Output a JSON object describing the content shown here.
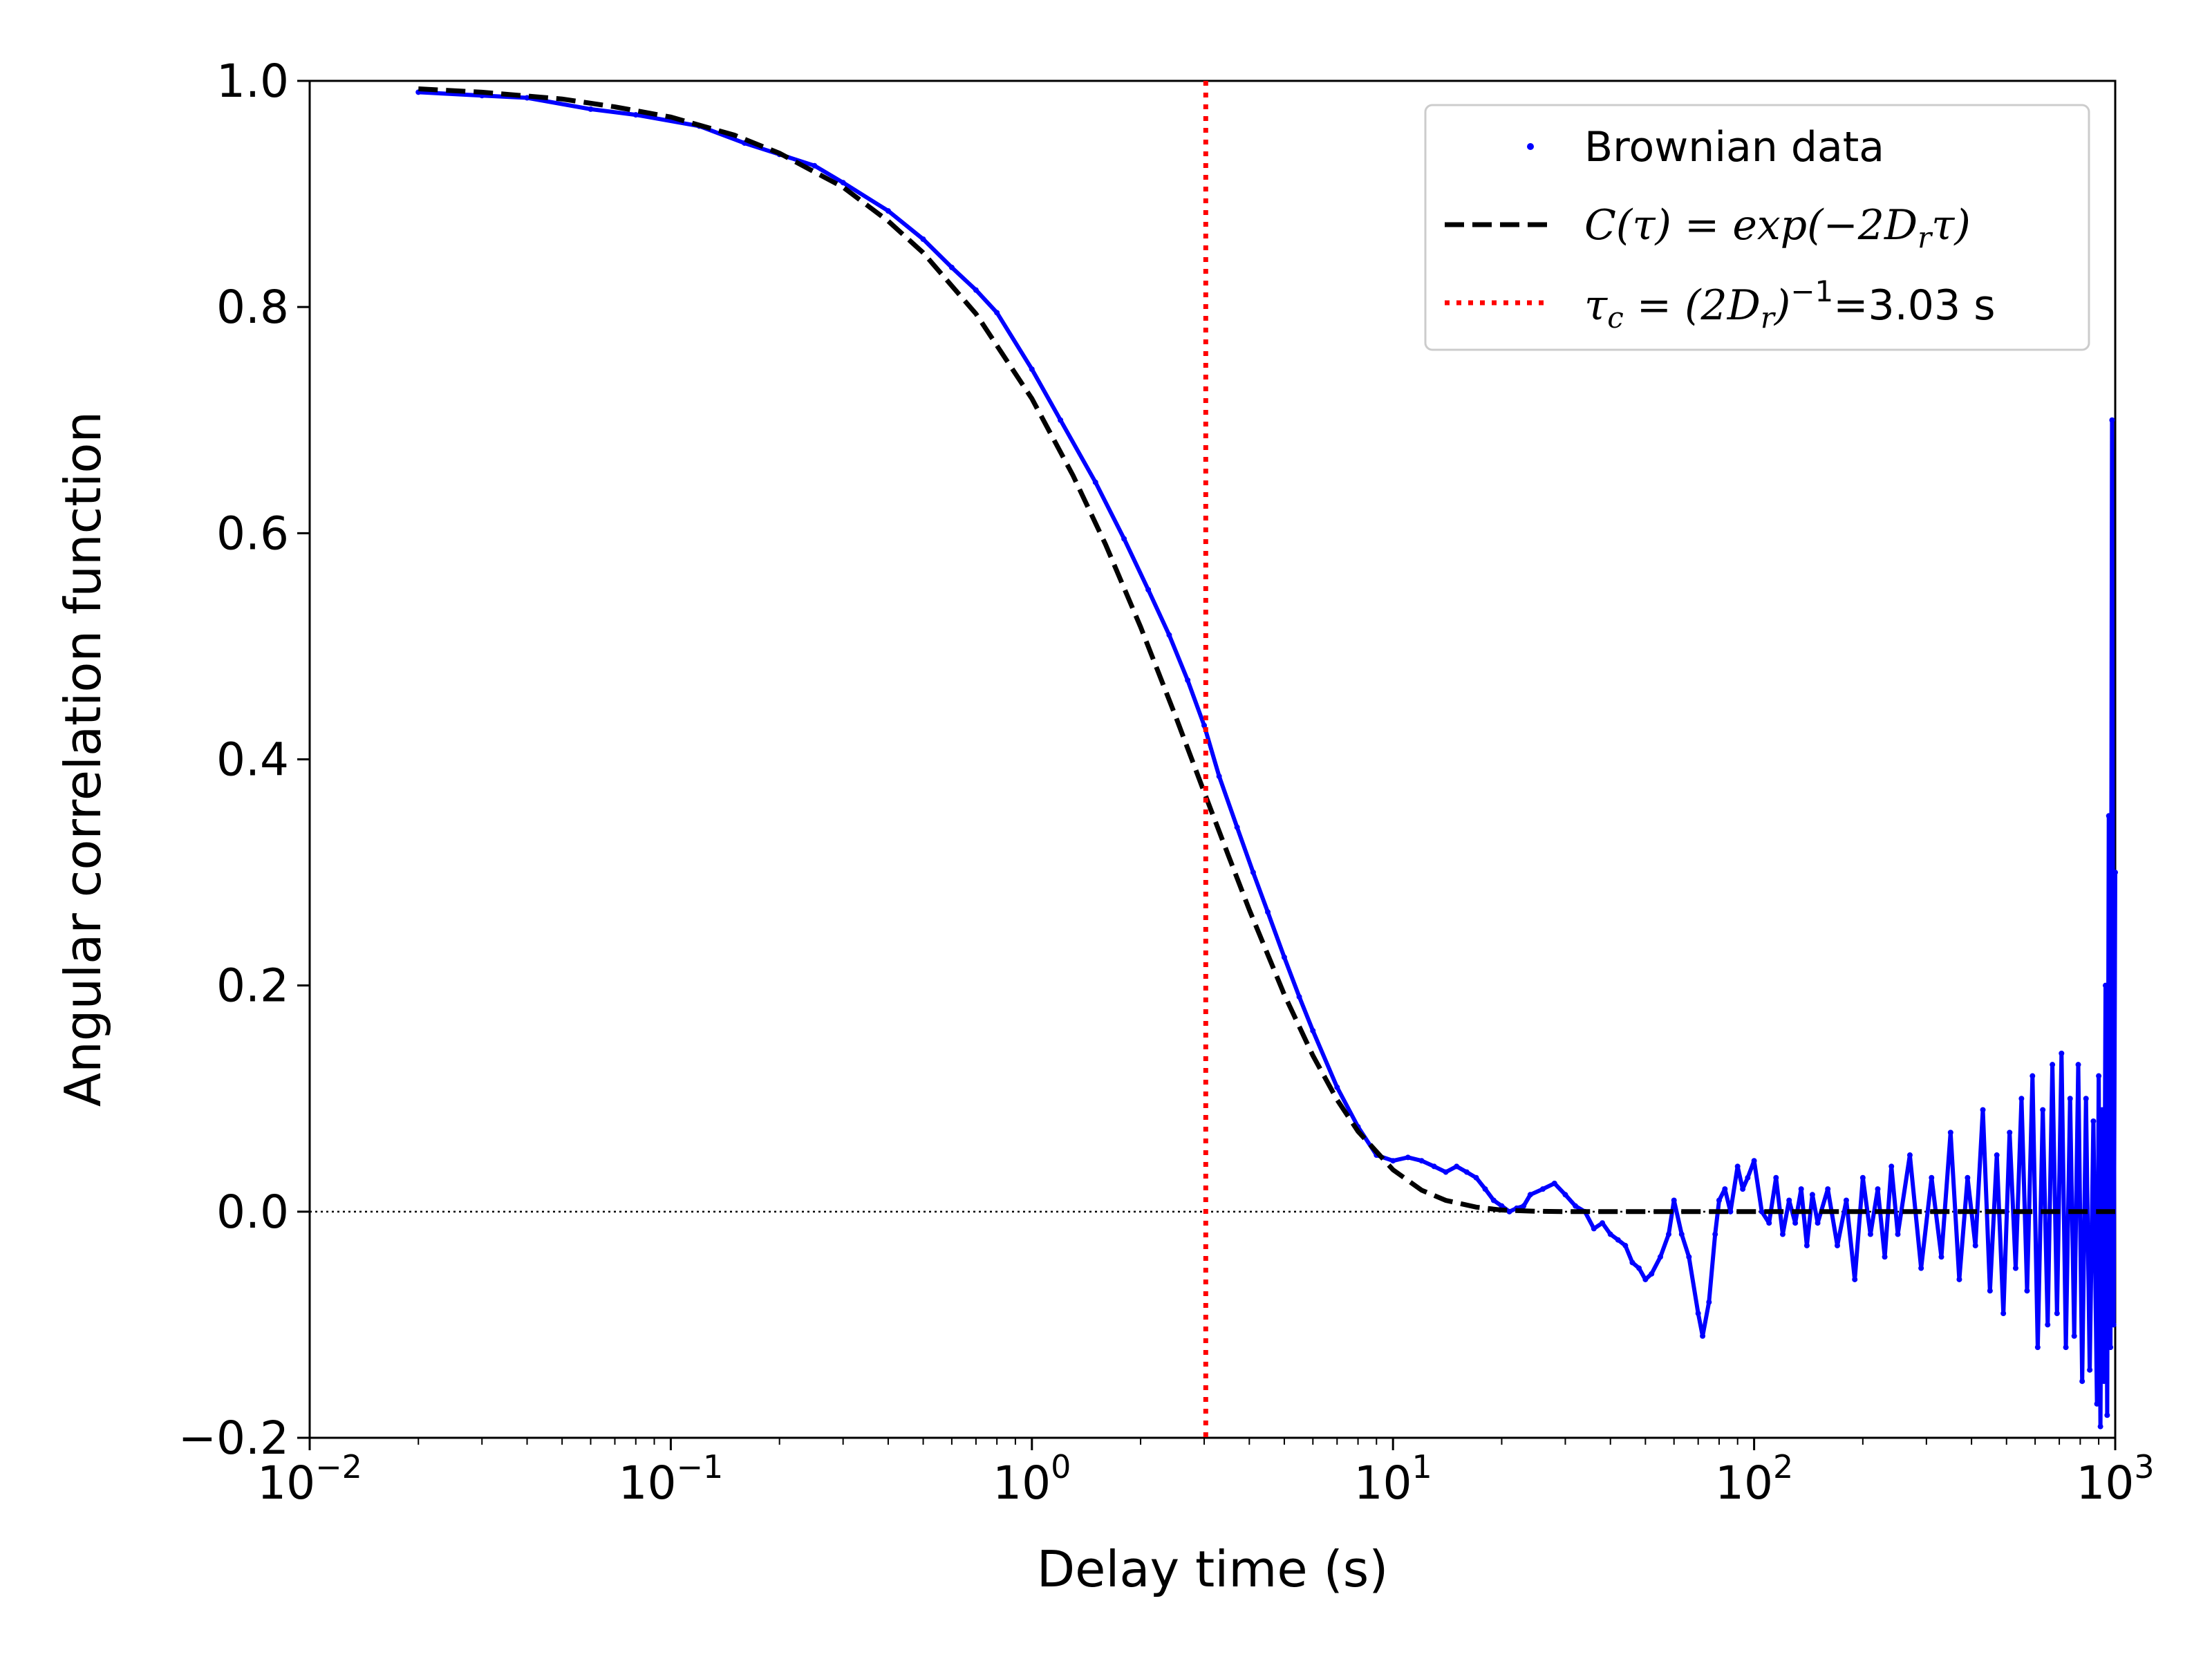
{
  "chart_data": {
    "type": "line",
    "title": "",
    "xlabel": "Delay time (s)",
    "ylabel": "Angular correlation function",
    "x_scale": "log",
    "xlim": [
      0.01,
      1000
    ],
    "ylim": [
      -0.2,
      1.0
    ],
    "x_ticks": [
      {
        "value": 0.01,
        "base": "10",
        "exp": "−2"
      },
      {
        "value": 0.1,
        "base": "10",
        "exp": "−1"
      },
      {
        "value": 1,
        "base": "10",
        "exp": "0"
      },
      {
        "value": 10,
        "base": "10",
        "exp": "1"
      },
      {
        "value": 100,
        "base": "10",
        "exp": "2"
      },
      {
        "value": 1000,
        "base": "10",
        "exp": "3"
      }
    ],
    "y_ticks": [
      {
        "value": -0.2,
        "label": "−0.2"
      },
      {
        "value": 0.0,
        "label": "0.0"
      },
      {
        "value": 0.2,
        "label": "0.2"
      },
      {
        "value": 0.4,
        "label": "0.4"
      },
      {
        "value": 0.6,
        "label": "0.6"
      },
      {
        "value": 0.8,
        "label": "0.8"
      },
      {
        "value": 1.0,
        "label": "1.0"
      }
    ],
    "grid": false,
    "legend_position": "top-right",
    "zero_line": 0.0,
    "legend": {
      "brownian": "Brownian data",
      "fit_prefix": "C(τ) = exp(−2D",
      "fit_sub": "r",
      "fit_suffix": "τ)",
      "tau_prefix": "τ",
      "tau_sub": "c",
      "tau_mid": " = (2D",
      "tau_sub2": "r",
      "tau_close": ")",
      "tau_sup": "−1",
      "tau_value": "=3.03 s"
    },
    "series": [
      {
        "name": "Brownian data",
        "style": "points",
        "color": "#0000ff",
        "x": [
          0.02,
          0.03,
          0.04,
          0.06,
          0.08,
          0.12,
          0.16,
          0.2,
          0.25,
          0.3,
          0.4,
          0.5,
          0.6,
          0.7,
          0.8,
          1.0,
          1.2,
          1.5,
          1.8,
          2.1,
          2.4,
          2.7,
          3.0,
          3.3,
          3.7,
          4.1,
          4.5,
          5.0,
          5.5,
          6.0,
          7.0,
          8.0,
          9.0,
          10,
          11,
          12,
          13,
          14,
          15,
          16,
          17,
          18,
          19,
          20,
          21,
          22,
          23,
          24,
          26,
          28,
          30,
          32,
          34,
          36,
          38,
          40,
          42,
          44,
          46,
          48,
          50,
          52,
          55,
          58,
          60,
          63,
          66,
          70,
          72,
          75,
          78,
          80,
          83,
          86,
          90,
          93,
          96,
          100,
          105,
          110,
          115,
          120,
          125,
          130,
          135,
          140,
          145,
          150,
          160,
          170,
          180,
          190,
          200,
          210,
          220,
          230,
          240,
          250,
          270,
          290,
          310,
          330,
          350,
          370,
          390,
          410,
          430,
          450,
          470,
          490,
          510,
          530,
          550,
          570,
          590,
          610,
          630,
          650,
          670,
          690,
          710,
          730,
          750,
          770,
          790,
          810,
          830,
          850,
          870,
          890,
          900,
          910,
          920,
          930,
          940,
          950,
          960,
          970,
          980,
          990,
          1000
        ],
        "y": [
          0.99,
          0.987,
          0.985,
          0.975,
          0.97,
          0.96,
          0.945,
          0.935,
          0.925,
          0.91,
          0.885,
          0.86,
          0.835,
          0.815,
          0.795,
          0.745,
          0.7,
          0.645,
          0.595,
          0.55,
          0.51,
          0.47,
          0.43,
          0.385,
          0.34,
          0.3,
          0.265,
          0.225,
          0.19,
          0.16,
          0.11,
          0.075,
          0.05,
          0.045,
          0.048,
          0.045,
          0.04,
          0.035,
          0.04,
          0.035,
          0.03,
          0.02,
          0.01,
          0.005,
          0.0,
          0.003,
          0.005,
          0.015,
          0.02,
          0.025,
          0.015,
          0.005,
          0.0,
          -0.015,
          -0.01,
          -0.02,
          -0.025,
          -0.03,
          -0.045,
          -0.05,
          -0.06,
          -0.055,
          -0.04,
          -0.02,
          0.01,
          -0.02,
          -0.04,
          -0.09,
          -0.11,
          -0.08,
          -0.02,
          0.01,
          0.02,
          0.0,
          0.04,
          0.02,
          0.03,
          0.045,
          0.0,
          -0.01,
          0.03,
          -0.02,
          0.01,
          -0.01,
          0.02,
          -0.03,
          0.015,
          -0.01,
          0.02,
          -0.03,
          0.01,
          -0.06,
          0.03,
          -0.02,
          0.02,
          -0.04,
          0.04,
          -0.02,
          0.05,
          -0.05,
          0.03,
          -0.04,
          0.07,
          -0.06,
          0.03,
          -0.03,
          0.09,
          -0.07,
          0.05,
          -0.09,
          0.07,
          -0.05,
          0.1,
          -0.07,
          0.12,
          -0.12,
          0.09,
          -0.1,
          0.13,
          -0.09,
          0.14,
          -0.12,
          0.1,
          -0.11,
          0.13,
          -0.15,
          0.1,
          -0.14,
          0.08,
          -0.17,
          0.12,
          -0.19,
          0.09,
          -0.15,
          0.2,
          -0.18,
          0.35,
          -0.12,
          0.7,
          -0.1,
          0.3
        ]
      },
      {
        "name": "C(τ) = exp(−2Dᵣτ)",
        "style": "dashed",
        "color": "#000000",
        "x": [
          0.02,
          0.03,
          0.05,
          0.07,
          0.1,
          0.15,
          0.2,
          0.3,
          0.4,
          0.5,
          0.7,
          1.0,
          1.3,
          1.6,
          2.0,
          2.5,
          3.0,
          3.5,
          4.0,
          5.0,
          6.0,
          7.0,
          8.0,
          10,
          12,
          14,
          17,
          20,
          25,
          30,
          40,
          50,
          70,
          100,
          200,
          500,
          1000
        ],
        "y": [
          0.993,
          0.99,
          0.984,
          0.977,
          0.968,
          0.952,
          0.936,
          0.906,
          0.876,
          0.848,
          0.794,
          0.719,
          0.651,
          0.59,
          0.517,
          0.438,
          0.371,
          0.315,
          0.267,
          0.192,
          0.138,
          0.099,
          0.071,
          0.037,
          0.019,
          0.01,
          0.004,
          0.0014,
          0.0003,
          5e-05,
          0.0,
          0.0,
          0.0,
          0.0,
          0.0,
          0.0,
          0.0
        ]
      },
      {
        "name": "τc = (2Dr)⁻¹=3.03 s",
        "style": "vline",
        "color": "#ff0000",
        "x_value": 3.03
      }
    ]
  }
}
